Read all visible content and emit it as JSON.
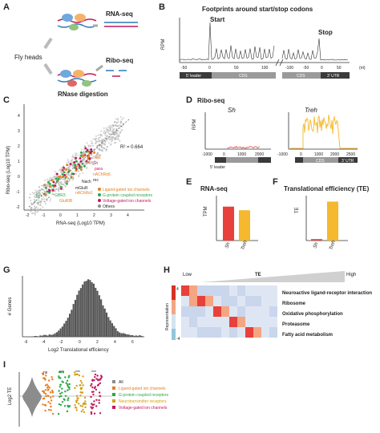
{
  "panel_letters": {
    "a": "A",
    "b": "B",
    "c": "C",
    "d": "D",
    "e": "E",
    "f": "F",
    "g": "G",
    "h": "H",
    "i": "I"
  },
  "panel_a": {
    "fly_heads": "Fly heads",
    "rna_seq": "RNA-seq",
    "ribo_seq": "Ribo-seq",
    "rnase": "RNase digestion"
  },
  "panel_b": {
    "title": "Footprints around start/stop codons",
    "ylabel": "RPM",
    "start": "Start",
    "stop": "Stop",
    "unit": "(nt)",
    "ticks": [
      "-50",
      "0",
      "50",
      "100",
      "-100",
      "-50",
      "0",
      "50"
    ],
    "segments": [
      "5' leader",
      "CDS",
      "CDS",
      "3' UTR"
    ]
  },
  "panel_c": {
    "ylabel": "Ribo-seq (Log10 TPM)",
    "xlabel": "RNA-seq (Log10 TPM)",
    "r2": "R² = 0.664",
    "yticks": [
      "4",
      "3",
      "2",
      "1",
      "0",
      "-1",
      "-2"
    ],
    "xticks": [
      "-2",
      "-1",
      "0",
      "1",
      "2",
      "3",
      "4"
    ],
    "gene_labels": [
      "Rdl",
      "Sh",
      "para",
      "nAChRα6",
      "Tyrr",
      "GluRIB",
      "GBR3",
      "nAChRα1",
      "mGluR",
      "Nach",
      "rec"
    ],
    "legend": [
      {
        "label": "Ligand-gated ion channels",
        "color": "#e67e22"
      },
      {
        "label": "G-protein coupled receptors",
        "color": "#2aa84a"
      },
      {
        "label": "Voltage-gated ion channels",
        "color": "#c2185b"
      },
      {
        "label": "Others",
        "color": "#8c8c8c"
      }
    ]
  },
  "panel_d": {
    "title": "Ribo-seq",
    "gene1": "Sh",
    "gene2": "Treh",
    "ylabel": "RPM",
    "ticks1": [
      "-1000",
      "0",
      "1000",
      "2000"
    ],
    "ticks2": [
      "-1000",
      "0",
      "1000",
      "2000",
      "2500"
    ],
    "segments": [
      "5' leader",
      "CDS",
      "3' UTR"
    ]
  },
  "panel_e": {
    "title": "RNA-seq",
    "ylabel": "TPM",
    "categories": [
      "Sh",
      "Treh"
    ]
  },
  "panel_f": {
    "title": "Translational efficiency (TE)",
    "ylabel": "TE",
    "categories": [
      "Sh",
      "Treh"
    ]
  },
  "panel_g": {
    "ylabel": "# Genes",
    "xlabel": "Log2 Translational efficiency",
    "xticks": [
      "-6",
      "-4",
      "-2",
      "0",
      "2",
      "4",
      "6"
    ]
  },
  "panel_h": {
    "low": "Low",
    "te": "TE",
    "high": "High",
    "ylabel": "Representation",
    "scale_top": "4",
    "scale_bot": "-4",
    "rows": [
      "Neuroactive ligand-receptor interaction",
      "Ribosome",
      "Oxidative phosphorylation",
      "Proteasome",
      "Fatty acid metabolism"
    ]
  },
  "panel_i": {
    "ylabel": "Log2 TE",
    "sig": [
      "ns",
      "***",
      "***",
      "***"
    ],
    "legend": [
      {
        "label": "All",
        "color": "#8c8c8c"
      },
      {
        "label": "Ligand-gated ion channels",
        "color": "#e67e22"
      },
      {
        "label": "G-protein coupled receptors",
        "color": "#2aa84a"
      },
      {
        "label": "Neurotransmitter receptors",
        "color": "#d4a017"
      },
      {
        "label": "Voltage-gated ion channels",
        "color": "#c2185b"
      }
    ]
  },
  "chart_data": [
    {
      "panel": "E",
      "type": "bar",
      "title": "RNA-seq",
      "ylabel": "TPM",
      "categories": [
        "Sh",
        "Treh"
      ],
      "values": [
        47,
        42
      ],
      "ylim": [
        0,
        60
      ]
    },
    {
      "panel": "F",
      "type": "bar",
      "title": "Translational efficiency (TE)",
      "ylabel": "TE",
      "categories": [
        "Sh",
        "Treh"
      ],
      "values": [
        0.1,
        2.7
      ],
      "ylim": [
        0,
        3
      ]
    }
  ],
  "colors": {
    "accent": "#e8403a",
    "gold": "#f5b82e",
    "gray": "#555555"
  }
}
